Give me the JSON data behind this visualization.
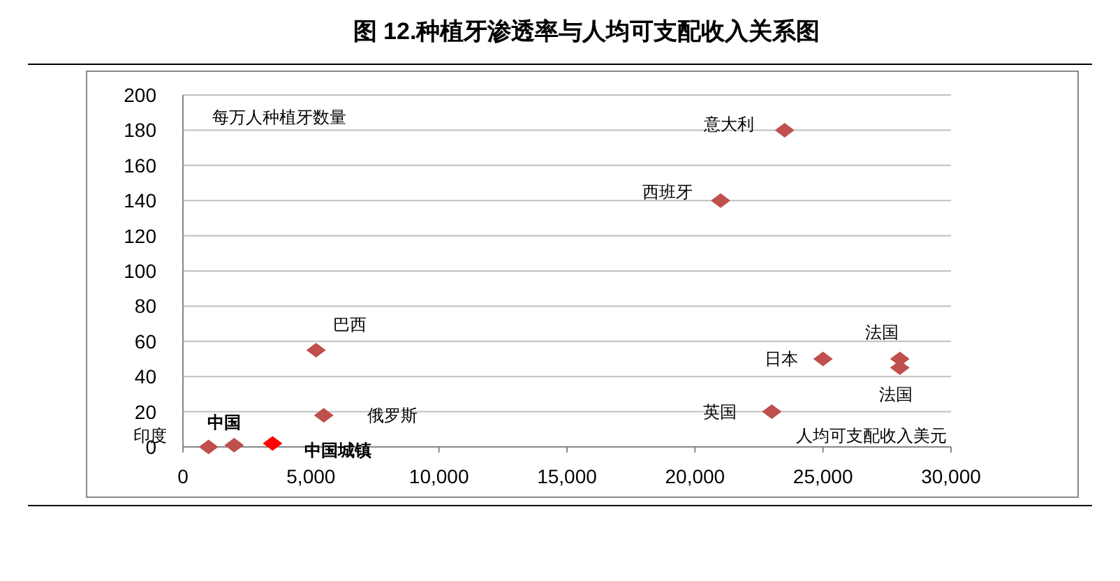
{
  "chart_data": {
    "type": "scatter",
    "title": "图 12.种植牙渗透率与人均可支配收入关系图",
    "xlabel": "人均可支配收入美元",
    "ylabel": "每万人种植牙数量",
    "marker": "diamond",
    "grid": "y",
    "xlim": [
      0,
      30000
    ],
    "xticks": [
      0,
      {
        "value": 5000,
        "label": "5,000"
      },
      {
        "value": 10000,
        "label": "10,000"
      },
      {
        "value": 15000,
        "label": "15,000"
      },
      {
        "value": 20000,
        "label": "20,000"
      },
      {
        "value": 25000,
        "label": "25,000"
      },
      {
        "value": 30000,
        "label": "30,000"
      }
    ],
    "ylim": [
      0,
      200
    ],
    "yticks": [
      0,
      20,
      40,
      60,
      80,
      100,
      120,
      140,
      160,
      180,
      200
    ],
    "series": [
      {
        "color": "#c0504d",
        "x": [
          1000,
          2000,
          5200,
          5500,
          21000,
          23500,
          23000,
          25000,
          28000,
          28000
        ],
        "values": [
          0,
          1,
          55,
          18,
          140,
          180,
          20,
          50,
          50,
          45
        ]
      },
      {
        "color": "#ff0000",
        "x": [
          3500
        ],
        "values": [
          2
        ]
      }
    ],
    "annotations": [
      {
        "text": "印度",
        "x": 1000,
        "y": 0
      },
      {
        "text": "中国",
        "x": 2000,
        "y": 1
      },
      {
        "text": "中国城镇",
        "x": 3500,
        "y": 2
      },
      {
        "text": "巴西",
        "x": 5200,
        "y": 55
      },
      {
        "text": "俄罗斯",
        "x": 5500,
        "y": 18
      },
      {
        "text": "西班牙",
        "x": 21000,
        "y": 140
      },
      {
        "text": "意大利",
        "x": 23500,
        "y": 180
      },
      {
        "text": "英国",
        "x": 23000,
        "y": 20
      },
      {
        "text": "日本",
        "x": 25000,
        "y": 50
      },
      {
        "text": "法国",
        "x": 28000,
        "y": 50
      },
      {
        "text": "法国",
        "x": 28000,
        "y": 45
      }
    ]
  }
}
